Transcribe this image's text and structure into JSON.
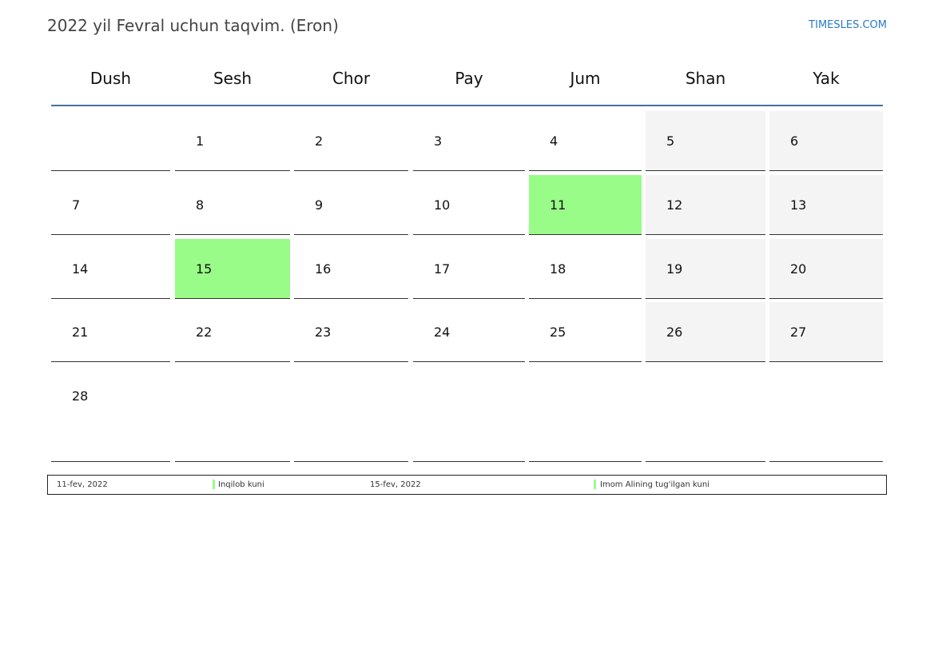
{
  "header": {
    "title": "2022 yil Fevral uchun taqvim. (Eron)",
    "brand": "TIMESLES.COM"
  },
  "weekdays": [
    "Dush",
    "Sesh",
    "Chor",
    "Pay",
    "Jum",
    "Shan",
    "Yak"
  ],
  "weeks": [
    [
      "",
      "1",
      "2",
      "3",
      "4",
      "5",
      "6"
    ],
    [
      "7",
      "8",
      "9",
      "10",
      "11",
      "12",
      "13"
    ],
    [
      "14",
      "15",
      "16",
      "17",
      "18",
      "19",
      "20"
    ],
    [
      "21",
      "22",
      "23",
      "24",
      "25",
      "26",
      "27"
    ],
    [
      "28",
      "",
      "",
      "",
      "",
      "",
      ""
    ]
  ],
  "holiday_days": [
    "11",
    "15"
  ],
  "colors": {
    "holiday": "#99fb88",
    "weekend": "#f4f4f4",
    "header_line": "#4a6f9c",
    "brand": "#2a7ac7"
  },
  "holidays": [
    {
      "date": "11-fev, 2022",
      "name": "Inqilob kuni"
    },
    {
      "date": "15-fev, 2022",
      "name": "Imom Alining tug'ilgan kuni"
    }
  ]
}
